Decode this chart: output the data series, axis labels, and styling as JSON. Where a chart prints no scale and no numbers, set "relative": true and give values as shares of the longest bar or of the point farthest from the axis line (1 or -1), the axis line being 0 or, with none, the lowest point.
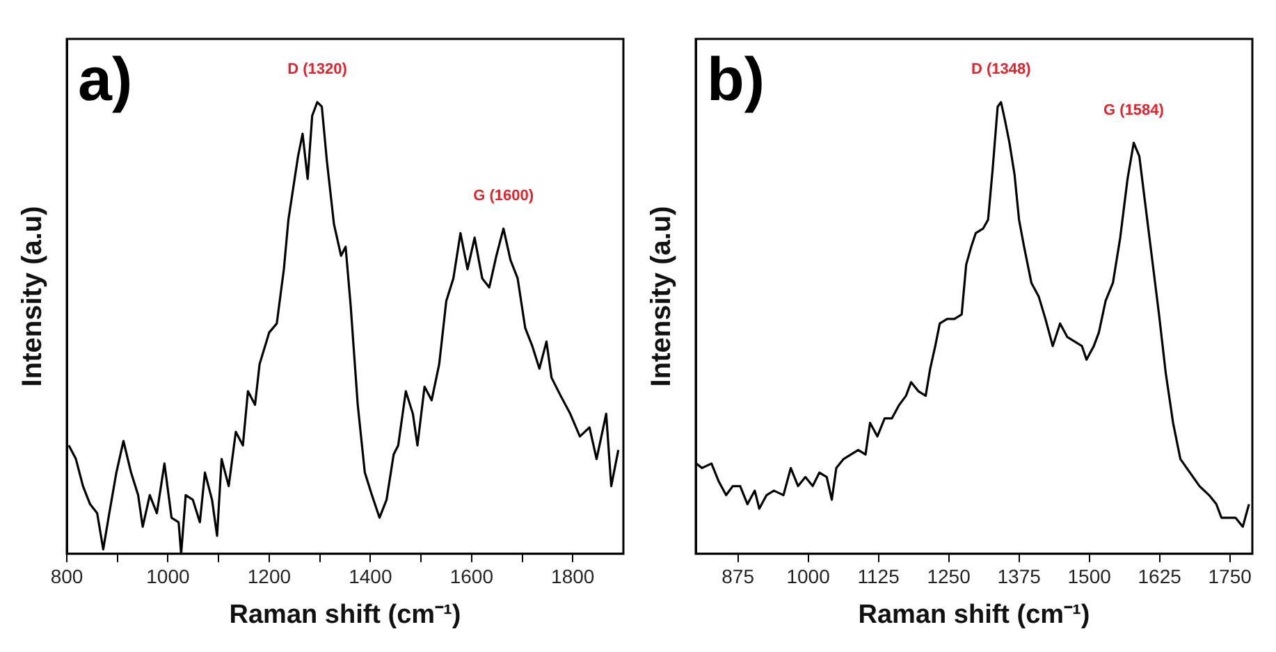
{
  "chart_data": [
    {
      "type": "line",
      "title": "a)",
      "xlabel": "Raman shift (cm⁻¹)",
      "ylabel": "Intensity (a.u)",
      "relative": true,
      "grid": false,
      "legend": false,
      "marker": "none",
      "line_style": "solid",
      "xlim": [
        800,
        1900
      ],
      "xticks": [
        800,
        {
          "value": 900,
          "label": null
        },
        1000,
        {
          "value": 1100,
          "label": null
        },
        1200,
        {
          "value": 1300,
          "label": null
        },
        1400,
        {
          "value": 1500,
          "label": null
        },
        1600,
        {
          "value": 1700,
          "label": null
        },
        1800
      ],
      "annotations": [
        "D (1320)",
        "G (1600)"
      ],
      "series": [
        {
          "color": "#000000",
          "x": [
            804,
            818,
            832,
            846,
            860,
            872,
            884,
            898,
            912,
            927,
            941,
            950,
            964,
            978,
            993,
            1007,
            1021,
            1026,
            1035,
            1049,
            1063,
            1073,
            1087,
            1097,
            1106,
            1120,
            1134,
            1148,
            1158,
            1172,
            1181,
            1200,
            1215,
            1229,
            1238,
            1257,
            1266,
            1276,
            1285,
            1295,
            1304,
            1314,
            1328,
            1342,
            1351,
            1361,
            1375,
            1389,
            1403,
            1418,
            1432,
            1446,
            1455,
            1470,
            1484,
            1493,
            1507,
            1521,
            1536,
            1550,
            1564,
            1578,
            1592,
            1606,
            1621,
            1635,
            1649,
            1663,
            1677,
            1691,
            1706,
            1720,
            1734,
            1748,
            1758,
            1776,
            1795,
            1814,
            1833,
            1847,
            1866,
            1876,
            1890
          ],
          "values": [
            0.24,
            0.21,
            0.15,
            0.11,
            0.09,
            0.01,
            0.09,
            0.18,
            0.25,
            0.18,
            0.13,
            0.06,
            0.13,
            0.09,
            0.2,
            0.08,
            0.07,
            0,
            0.13,
            0.12,
            0.07,
            0.18,
            0.12,
            0.04,
            0.21,
            0.15,
            0.27,
            0.24,
            0.36,
            0.33,
            0.42,
            0.49,
            0.51,
            0.63,
            0.74,
            0.88,
            0.93,
            0.83,
            0.97,
            1,
            0.99,
            0.87,
            0.73,
            0.66,
            0.68,
            0.55,
            0.33,
            0.18,
            0.13,
            0.08,
            0.12,
            0.22,
            0.24,
            0.36,
            0.31,
            0.24,
            0.37,
            0.34,
            0.42,
            0.56,
            0.61,
            0.71,
            0.63,
            0.7,
            0.61,
            0.59,
            0.66,
            0.72,
            0.65,
            0.61,
            0.5,
            0.46,
            0.41,
            0.47,
            0.39,
            0.35,
            0.31,
            0.26,
            0.28,
            0.21,
            0.31,
            0.15,
            0.23
          ]
        }
      ]
    },
    {
      "type": "line",
      "title": "b)",
      "xlabel": "Raman shift (cm⁻¹)",
      "ylabel": "Intensity (a.u)",
      "relative": true,
      "grid": false,
      "legend": false,
      "marker": "none",
      "line_style": "solid",
      "xlim": [
        800,
        1790
      ],
      "xticks": [
        875,
        1000,
        1125,
        1250,
        1375,
        1500,
        1625,
        1750
      ],
      "annotations": [
        "D (1348)",
        "G (1584)"
      ],
      "series": [
        {
          "color": "#000000",
          "x": [
            801,
            811,
            828,
            841,
            854,
            866,
            879,
            892,
            905,
            913,
            926,
            939,
            956,
            969,
            982,
            995,
            1008,
            1020,
            1033,
            1042,
            1050,
            1063,
            1076,
            1089,
            1102,
            1110,
            1123,
            1136,
            1149,
            1162,
            1174,
            1183,
            1196,
            1209,
            1217,
            1226,
            1234,
            1247,
            1260,
            1273,
            1281,
            1290,
            1298,
            1311,
            1320,
            1328,
            1337,
            1343,
            1350,
            1358,
            1367,
            1375,
            1384,
            1397,
            1410,
            1422,
            1435,
            1448,
            1461,
            1474,
            1487,
            1495,
            1508,
            1517,
            1529,
            1542,
            1555,
            1568,
            1579,
            1589,
            1598,
            1611,
            1624,
            1636,
            1649,
            1662,
            1679,
            1696,
            1713,
            1726,
            1735,
            1748,
            1760,
            1773,
            1784
          ],
          "values": [
            0.2,
            0.19,
            0.2,
            0.16,
            0.13,
            0.15,
            0.15,
            0.11,
            0.14,
            0.1,
            0.13,
            0.14,
            0.13,
            0.19,
            0.15,
            0.17,
            0.15,
            0.18,
            0.17,
            0.12,
            0.19,
            0.21,
            0.22,
            0.23,
            0.22,
            0.29,
            0.26,
            0.3,
            0.3,
            0.33,
            0.35,
            0.38,
            0.36,
            0.35,
            0.41,
            0.46,
            0.51,
            0.52,
            0.52,
            0.53,
            0.64,
            0.68,
            0.71,
            0.72,
            0.74,
            0.85,
            0.99,
            1,
            0.96,
            0.91,
            0.84,
            0.74,
            0.68,
            0.6,
            0.57,
            0.52,
            0.46,
            0.51,
            0.48,
            0.47,
            0.46,
            0.43,
            0.46,
            0.49,
            0.56,
            0.6,
            0.7,
            0.83,
            0.91,
            0.88,
            0.79,
            0.66,
            0.53,
            0.4,
            0.29,
            0.21,
            0.18,
            0.15,
            0.13,
            0.11,
            0.08,
            0.08,
            0.08,
            0.06,
            0.11
          ]
        }
      ]
    }
  ]
}
